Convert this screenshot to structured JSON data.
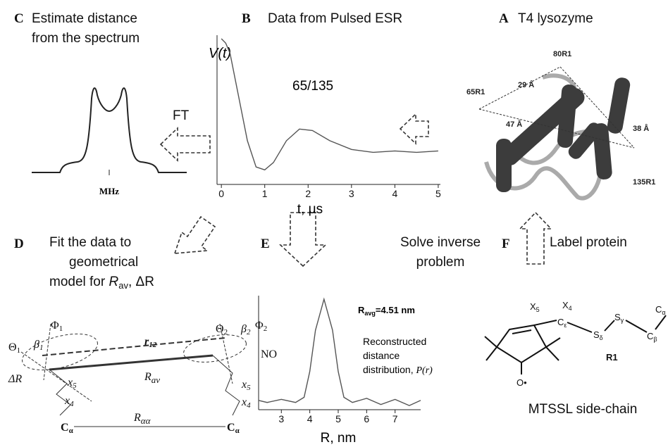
{
  "panels": {
    "C": {
      "letter": "C",
      "title": [
        "Estimate distance",
        "from the spectrum"
      ],
      "x_label": "MHz",
      "arrow_label": "FT"
    },
    "B": {
      "letter": "B",
      "title": "Data from Pulsed ESR"
    },
    "A": {
      "letter": "A",
      "title": "T4 lysozyme",
      "labels": [
        "80R1",
        "29 Å",
        "65R1",
        "47 Å",
        "38 Å",
        "135R1"
      ]
    },
    "D": {
      "letter": "D",
      "title_lines": [
        "Fit the data to",
        "geometrical"
      ],
      "title_last": {
        "text": "model for ",
        "r": "R",
        "sub": "av",
        "tail": ", ΔR"
      },
      "labels": {
        "phi1": {
          "t": "Φ",
          "s": "1"
        },
        "theta1": {
          "t": "Θ",
          "s": "1"
        },
        "beta1": {
          "t": "β",
          "s": "1"
        },
        "r12": {
          "t": "r",
          "s": "12"
        },
        "theta2": {
          "t": "Θ",
          "s": "2"
        },
        "beta2": {
          "t": "β",
          "s": "2"
        },
        "phi2": {
          "t": "Φ",
          "s": "2"
        },
        "dr": "ΔR",
        "rav": {
          "t": "R",
          "s": "av"
        },
        "x5a": {
          "t": "x",
          "s": "5"
        },
        "x4a": {
          "t": "x",
          "s": "4"
        },
        "x5b": {
          "t": "x",
          "s": "5"
        },
        "x4b": {
          "t": "x",
          "s": "4"
        },
        "ca1": {
          "t": "C",
          "s": "α"
        },
        "raa": {
          "t": "R",
          "s": "αα"
        },
        "ca2": {
          "t": "C",
          "s": "α"
        },
        "no": "NO"
      }
    },
    "E": {
      "letter": "E",
      "title": [
        "Solve inverse",
        "problem"
      ]
    },
    "F": {
      "letter": "F",
      "title": "Label protein",
      "labels": {
        "x5": {
          "t": "X",
          "s": "5"
        },
        "x4": {
          "t": "X",
          "s": "4"
        },
        "ce": {
          "t": "C",
          "s": "ε"
        },
        "sd": {
          "t": "S",
          "s": "δ"
        },
        "sg": {
          "t": "S",
          "s": "γ"
        },
        "cb": {
          "t": "C",
          "s": "β"
        },
        "ca": {
          "t": "C",
          "s": "α"
        },
        "o": "O•",
        "r1": "R1"
      },
      "caption": "MTSSL side-chain"
    }
  },
  "chart_data": [
    {
      "type": "line",
      "y_label": "V(t)",
      "annotation": "65/135",
      "x_label": "t, μs",
      "color": "#555555",
      "x": [
        0,
        0.1,
        0.2,
        0.4,
        0.6,
        0.8,
        1.0,
        1.2,
        1.5,
        1.8,
        2.1,
        2.5,
        3.0,
        3.5,
        4.0,
        4.5,
        5.0
      ],
      "values": [
        1.0,
        0.97,
        0.9,
        0.6,
        0.3,
        0.12,
        0.1,
        0.15,
        0.3,
        0.38,
        0.37,
        0.3,
        0.24,
        0.22,
        0.23,
        0.22,
        0.23
      ],
      "xlim": [
        -0.1,
        5.05
      ],
      "ylim": [
        0,
        1.0
      ],
      "xticks": [
        0,
        1,
        2,
        3,
        4,
        5
      ]
    },
    {
      "type": "line",
      "annotation": {
        "text": "R",
        "sub": "avg",
        "tail": "=4.51 nm"
      },
      "annotation2": [
        "Reconstructed",
        "distance",
        "distribution, "
      ],
      "annotation2_tail": "P(r)",
      "x_label": "R, nm",
      "color": "#555555",
      "x": [
        2.2,
        2.5,
        3.0,
        3.5,
        3.8,
        4.0,
        4.2,
        4.5,
        4.8,
        5.0,
        5.2,
        5.5,
        6.0,
        6.5,
        7.0,
        7.5,
        7.9
      ],
      "values": [
        0.02,
        0.0,
        0.03,
        0.0,
        0.05,
        0.3,
        0.7,
        1.0,
        0.7,
        0.3,
        0.05,
        0.0,
        0.04,
        -0.02,
        0.03,
        -0.03,
        0.02
      ],
      "xlim": [
        2.2,
        7.9
      ],
      "ylim": [
        -0.07,
        1.0
      ],
      "xticks": [
        3,
        4,
        5,
        6,
        7
      ]
    }
  ]
}
